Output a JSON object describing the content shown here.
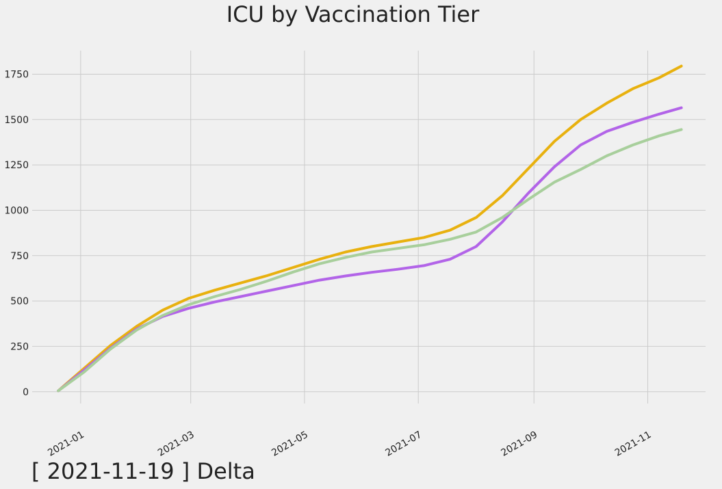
{
  "chart_data": {
    "type": "line",
    "title": "ICU by Vaccination Tier",
    "xlabel": "",
    "ylabel": "",
    "footer": "[ 2021-11-19 ] Delta",
    "xlim": [
      "2020-12-06",
      "2021-12-02"
    ],
    "ylim": [
      -65,
      1880
    ],
    "grid": true,
    "x_ticks": [
      "2021-01",
      "2021-03",
      "2021-05",
      "2021-07",
      "2021-09",
      "2021-11"
    ],
    "y_ticks": [
      0,
      250,
      500,
      750,
      1000,
      1250,
      1500,
      1750
    ],
    "x": [
      "2020-12-20",
      "2021-01-03",
      "2021-01-17",
      "2021-01-31",
      "2021-02-14",
      "2021-02-28",
      "2021-03-14",
      "2021-03-28",
      "2021-04-11",
      "2021-04-25",
      "2021-05-09",
      "2021-05-23",
      "2021-06-06",
      "2021-06-20",
      "2021-07-04",
      "2021-07-18",
      "2021-08-01",
      "2021-08-15",
      "2021-08-29",
      "2021-09-12",
      "2021-09-26",
      "2021-10-10",
      "2021-10-24",
      "2021-11-07",
      "2021-11-19"
    ],
    "series": [
      {
        "color": "#e8b10f",
        "values": [
          5,
          130,
          255,
          360,
          450,
          515,
          560,
          600,
          640,
          685,
          730,
          770,
          800,
          825,
          850,
          890,
          960,
          1080,
          1230,
          1380,
          1500,
          1590,
          1670,
          1730,
          1795
        ]
      },
      {
        "color": "#b264e8",
        "values": [
          5,
          120,
          240,
          345,
          415,
          460,
          495,
          525,
          555,
          585,
          615,
          638,
          658,
          675,
          695,
          730,
          800,
          935,
          1095,
          1240,
          1360,
          1435,
          1485,
          1530,
          1565
        ]
      },
      {
        "color": "#a8cf9c",
        "values": [
          5,
          110,
          235,
          340,
          420,
          480,
          525,
          565,
          610,
          660,
          705,
          740,
          770,
          790,
          810,
          840,
          880,
          960,
          1060,
          1155,
          1225,
          1300,
          1360,
          1410,
          1445
        ]
      }
    ]
  }
}
